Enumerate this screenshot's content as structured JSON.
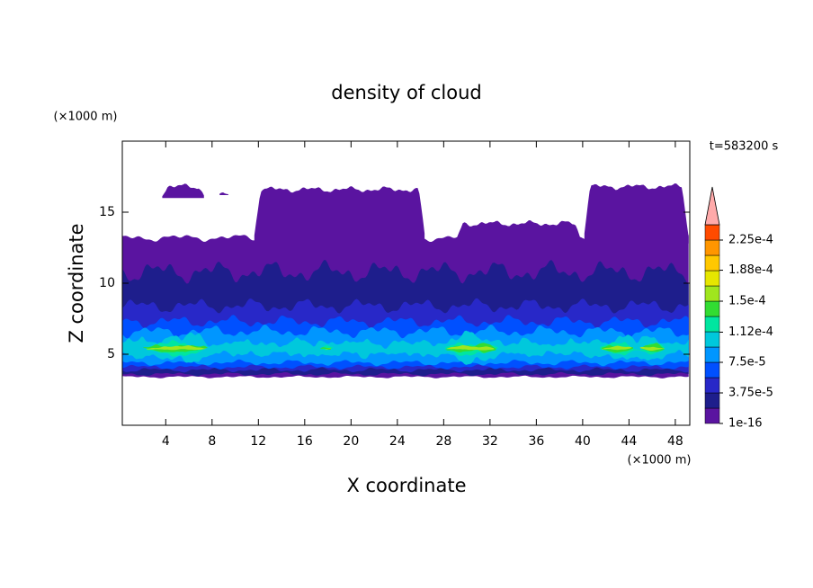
{
  "chart_data": {
    "type": "contour",
    "title": "density of cloud",
    "x_label": "X coordinate",
    "y_label": "Z coordinate",
    "x_unit": "(×1000 m)",
    "y_unit": "(×1000 m)",
    "time_label": "t=583200 s",
    "xlim": [
      0.25,
      49.25
    ],
    "xticks": [
      4,
      8,
      12,
      16,
      20,
      24,
      28,
      32,
      36,
      40,
      44,
      48
    ],
    "ylim": [
      0,
      20
    ],
    "yticks": [
      5,
      10,
      15
    ],
    "colorbar": {
      "levels": [
        1e-16,
        1.875e-05,
        3.75e-05,
        5.625e-05,
        7.5e-05,
        9.375e-05,
        0.0001125,
        0.00013125,
        0.00015,
        0.00016875,
        0.0001875,
        0.00020625,
        0.000225,
        0.00024375
      ],
      "colors": [
        "#5a14a0",
        "#1e1e8c",
        "#2828c8",
        "#0050ff",
        "#0096ff",
        "#00c8dc",
        "#00e6a0",
        "#32dc32",
        "#a0e61e",
        "#e6e600",
        "#ffc800",
        "#ff9600",
        "#ff4b00",
        "#ffaaaa"
      ],
      "lim": [
        0,
        0.00024375
      ],
      "ticks": [
        1e-16,
        {
          "value": 3.75e-05,
          "label": "3.75e-5"
        },
        {
          "value": 7.5e-05,
          "label": "7.5e-5"
        },
        {
          "value": 0.000112,
          "label": "1.12e-4"
        },
        {
          "value": 0.00015,
          "label": "1.5e-4"
        },
        {
          "value": 0.000188,
          "label": "1.88e-4"
        },
        {
          "value": 0.000225,
          "label": "2.25e-4"
        }
      ]
    }
  }
}
